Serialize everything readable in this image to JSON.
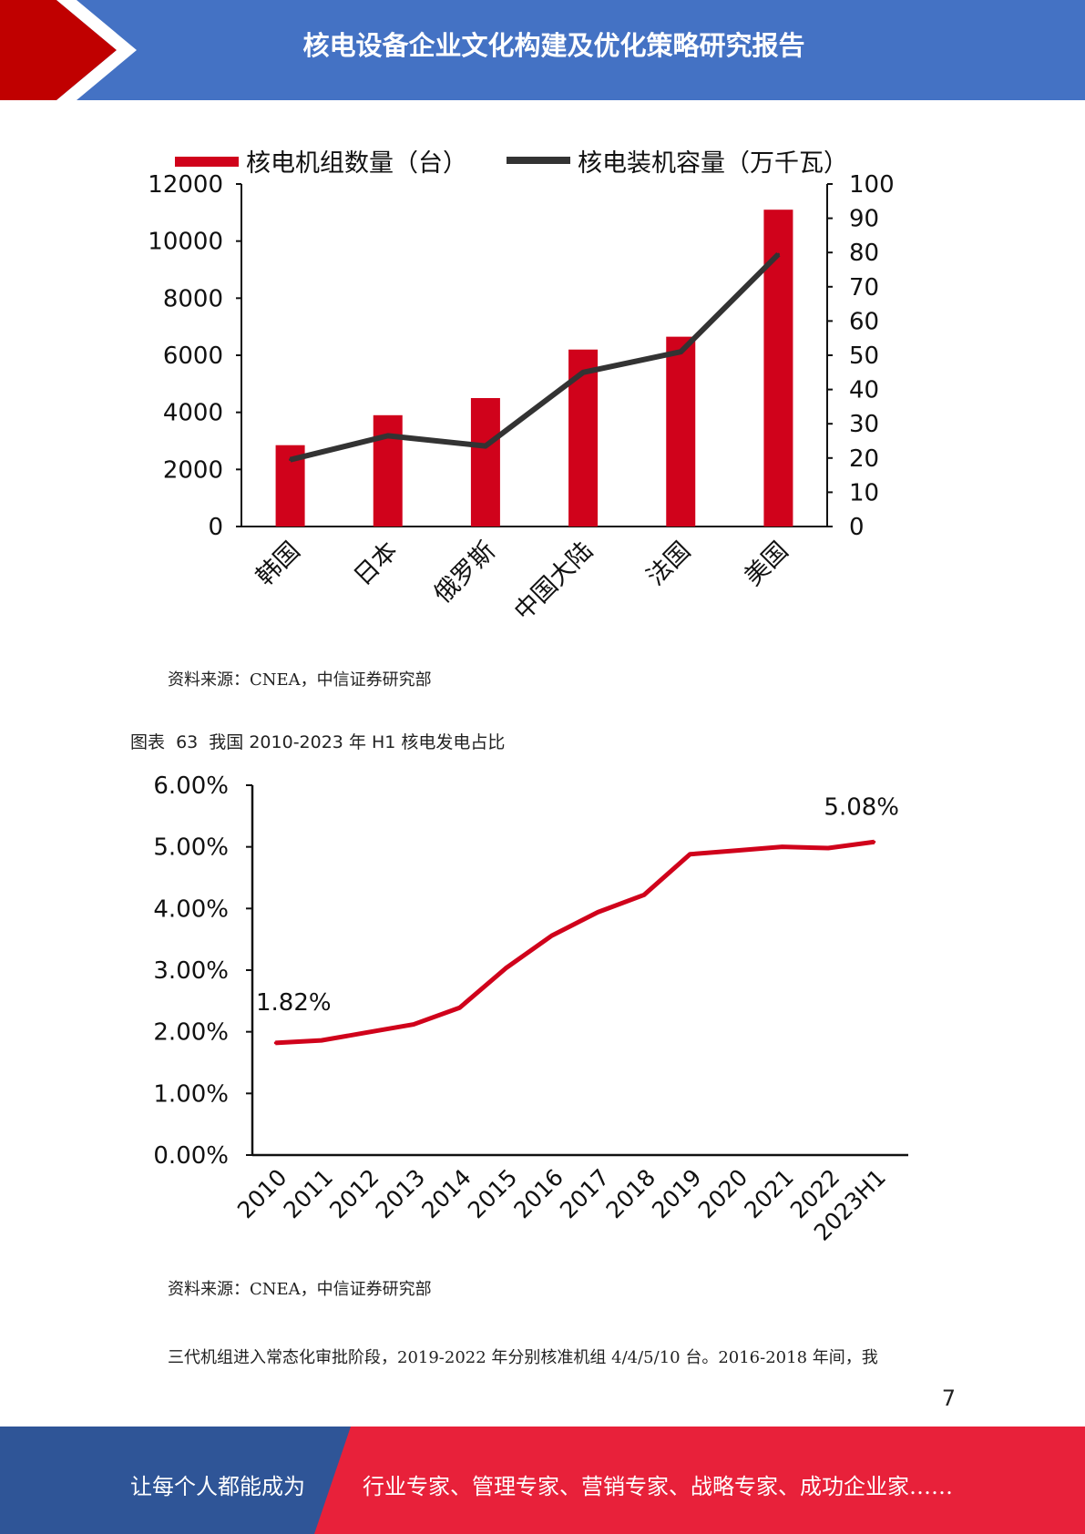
{
  "header": {
    "title": "核电设备企业文化构建及优化策略研究报告"
  },
  "chart_data": [
    {
      "type": "bar",
      "categories": [
        "韩国",
        "日本",
        "俄罗斯",
        "中国大陆",
        "法国",
        "美国"
      ],
      "series": [
        {
          "name": "核电机组数量（台）",
          "type": "bar",
          "axis": "left",
          "values": [
            2850,
            3900,
            4500,
            6200,
            6650,
            11100
          ],
          "color": "#d0021b"
        },
        {
          "name": "核电装机容量（万千瓦）",
          "type": "line",
          "axis": "right",
          "values": [
            19.5,
            26.5,
            23.5,
            45,
            51,
            79.5
          ],
          "color": "#333333"
        }
      ],
      "ylim": [
        0,
        12000
      ],
      "y2lim": [
        0,
        100
      ],
      "yticks": [
        "0",
        "2000",
        "4000",
        "6000",
        "8000",
        "10000",
        "12000"
      ],
      "y2ticks": [
        "0",
        "10",
        "20",
        "30",
        "40",
        "50",
        "60",
        "70",
        "80",
        "90",
        "100"
      ],
      "legend": "top"
    },
    {
      "type": "line",
      "categories": [
        "2010",
        "2011",
        "2012",
        "2013",
        "2014",
        "2015",
        "2016",
        "2017",
        "2018",
        "2019",
        "2020",
        "2021",
        "2022",
        "2023H1"
      ],
      "series": [
        {
          "values": [
            1.82,
            1.86,
            1.99,
            2.12,
            2.39,
            3.03,
            3.56,
            3.94,
            4.22,
            4.88,
            4.94,
            5.0,
            4.98,
            5.08
          ],
          "color": "#d0021b"
        }
      ],
      "ylim": [
        0,
        6
      ],
      "yticks": [
        "0.00%",
        "1.00%",
        "2.00%",
        "3.00%",
        "4.00%",
        "5.00%",
        "6.00%"
      ],
      "annotations": [
        "1.82%",
        "5.08%"
      ]
    }
  ],
  "source1": "资料来源：CNEA，中信证券研究部",
  "caption": {
    "label": "图表",
    "number": "63",
    "text": "我国 2010-2023 年 H1 核电发电占比"
  },
  "source2": "资料来源：CNEA，中信证券研究部",
  "body_text": "三代机组进入常态化审批阶段，2019-2022 年分别核准机组 4/4/5/10 台。2016-2018 年间，我",
  "page_number": "7",
  "footer": {
    "left": "让每个人都能成为",
    "right": "行业专家、管理专家、营销专家、战略专家、成功企业家……"
  },
  "colors": {
    "header_blue": "#4472c4",
    "accent_red": "#c00000",
    "footer_blue": "#2f5597",
    "footer_red": "#e8213a",
    "bar_red": "#d0021b"
  }
}
